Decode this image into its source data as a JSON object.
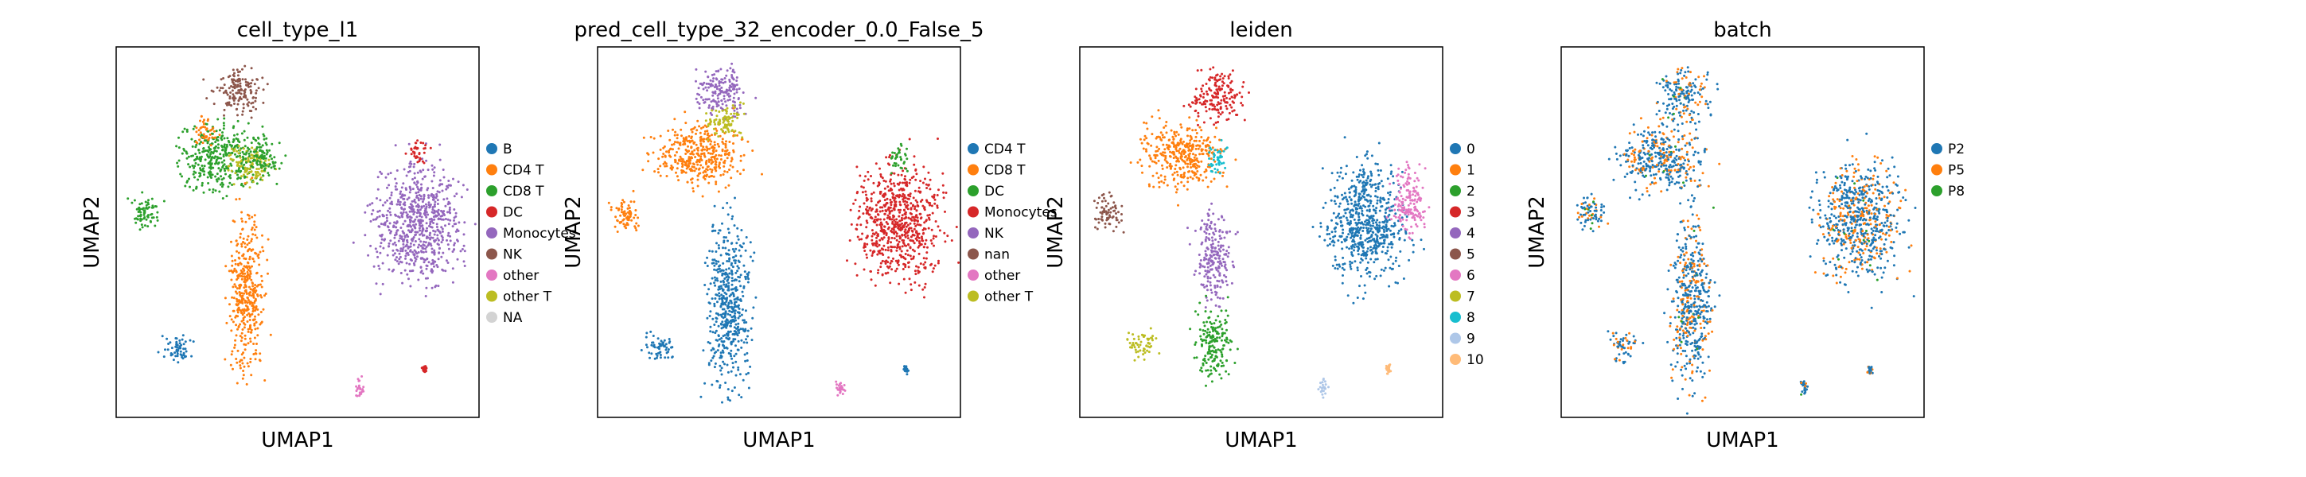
{
  "chart_data": [
    {
      "type": "scatter",
      "title": "cell_type_l1",
      "xlabel": "UMAP1",
      "ylabel": "UMAP2",
      "grid": false,
      "legend_position": "right",
      "series": [
        {
          "name": "B",
          "color": "#1f77b4"
        },
        {
          "name": "CD4 T",
          "color": "#ff7f0e"
        },
        {
          "name": "CD8 T",
          "color": "#2ca02c"
        },
        {
          "name": "DC",
          "color": "#d62728"
        },
        {
          "name": "Monocytes",
          "color": "#9467bd"
        },
        {
          "name": "NK",
          "color": "#8c564b"
        },
        {
          "name": "other",
          "color": "#e377c2"
        },
        {
          "name": "other T",
          "color": "#bcbd22"
        },
        {
          "name": "NA",
          "color": "#d3d3d3"
        }
      ],
      "clusters": [
        {
          "c": 5,
          "x": 0.34,
          "y": 0.88,
          "rx": 0.065,
          "ry": 0.065
        },
        {
          "c": 2,
          "x": 0.28,
          "y": 0.7,
          "rx": 0.11,
          "ry": 0.09
        },
        {
          "c": 7,
          "x": 0.37,
          "y": 0.68,
          "rx": 0.06,
          "ry": 0.05
        },
        {
          "c": 2,
          "x": 0.4,
          "y": 0.7,
          "rx": 0.05,
          "ry": 0.06
        },
        {
          "c": 1,
          "x": 0.25,
          "y": 0.78,
          "rx": 0.03,
          "ry": 0.04
        },
        {
          "c": 2,
          "x": 0.08,
          "y": 0.55,
          "rx": 0.04,
          "ry": 0.05
        },
        {
          "c": 1,
          "x": 0.36,
          "y": 0.33,
          "rx": 0.05,
          "ry": 0.22
        },
        {
          "c": 0,
          "x": 0.17,
          "y": 0.19,
          "rx": 0.04,
          "ry": 0.04
        },
        {
          "c": 4,
          "x": 0.83,
          "y": 0.53,
          "rx": 0.12,
          "ry": 0.16
        },
        {
          "c": 3,
          "x": 0.83,
          "y": 0.71,
          "rx": 0.025,
          "ry": 0.04
        },
        {
          "c": 6,
          "x": 0.67,
          "y": 0.08,
          "rx": 0.012,
          "ry": 0.025
        },
        {
          "c": 3,
          "x": 0.85,
          "y": 0.13,
          "rx": 0.008,
          "ry": 0.012
        }
      ]
    },
    {
      "type": "scatter",
      "title": "pred_cell_type_32_encoder_0.0_False_5",
      "xlabel": "UMAP1",
      "ylabel": "UMAP2",
      "grid": false,
      "legend_position": "right",
      "series": [
        {
          "name": "CD4 T",
          "color": "#1f77b4"
        },
        {
          "name": "CD8 T",
          "color": "#ff7f0e"
        },
        {
          "name": "DC",
          "color": "#2ca02c"
        },
        {
          "name": "Monocytes",
          "color": "#d62728"
        },
        {
          "name": "NK",
          "color": "#9467bd"
        },
        {
          "name": "nan",
          "color": "#8c564b"
        },
        {
          "name": "other",
          "color": "#e377c2"
        },
        {
          "name": "other T",
          "color": "#bcbd22"
        }
      ],
      "clusters": [
        {
          "c": 4,
          "x": 0.34,
          "y": 0.88,
          "rx": 0.07,
          "ry": 0.07
        },
        {
          "c": 1,
          "x": 0.28,
          "y": 0.71,
          "rx": 0.12,
          "ry": 0.09
        },
        {
          "c": 7,
          "x": 0.35,
          "y": 0.8,
          "rx": 0.05,
          "ry": 0.05
        },
        {
          "c": 1,
          "x": 0.08,
          "y": 0.55,
          "rx": 0.04,
          "ry": 0.05
        },
        {
          "c": 0,
          "x": 0.36,
          "y": 0.32,
          "rx": 0.06,
          "ry": 0.23
        },
        {
          "c": 0,
          "x": 0.17,
          "y": 0.19,
          "rx": 0.04,
          "ry": 0.04
        },
        {
          "c": 3,
          "x": 0.83,
          "y": 0.53,
          "rx": 0.12,
          "ry": 0.16
        },
        {
          "c": 2,
          "x": 0.83,
          "y": 0.7,
          "rx": 0.025,
          "ry": 0.04
        },
        {
          "c": 6,
          "x": 0.67,
          "y": 0.08,
          "rx": 0.012,
          "ry": 0.025
        },
        {
          "c": 0,
          "x": 0.85,
          "y": 0.13,
          "rx": 0.008,
          "ry": 0.012
        }
      ]
    },
    {
      "type": "scatter",
      "title": "leiden",
      "xlabel": "UMAP1",
      "ylabel": "UMAP2",
      "grid": false,
      "legend_position": "right",
      "series": [
        {
          "name": "0",
          "color": "#1f77b4"
        },
        {
          "name": "1",
          "color": "#ff7f0e"
        },
        {
          "name": "2",
          "color": "#2ca02c"
        },
        {
          "name": "3",
          "color": "#d62728"
        },
        {
          "name": "4",
          "color": "#9467bd"
        },
        {
          "name": "5",
          "color": "#8c564b"
        },
        {
          "name": "6",
          "color": "#e377c2"
        },
        {
          "name": "7",
          "color": "#bcbd22"
        },
        {
          "name": "8",
          "color": "#17becf"
        },
        {
          "name": "9",
          "color": "#aec7e8"
        },
        {
          "name": "10",
          "color": "#ffbb78"
        }
      ],
      "clusters": [
        {
          "c": 3,
          "x": 0.38,
          "y": 0.87,
          "rx": 0.07,
          "ry": 0.07
        },
        {
          "c": 1,
          "x": 0.28,
          "y": 0.71,
          "rx": 0.11,
          "ry": 0.09
        },
        {
          "c": 8,
          "x": 0.38,
          "y": 0.7,
          "rx": 0.03,
          "ry": 0.04
        },
        {
          "c": 5,
          "x": 0.08,
          "y": 0.55,
          "rx": 0.04,
          "ry": 0.05
        },
        {
          "c": 4,
          "x": 0.37,
          "y": 0.43,
          "rx": 0.05,
          "ry": 0.12
        },
        {
          "c": 2,
          "x": 0.37,
          "y": 0.2,
          "rx": 0.05,
          "ry": 0.1
        },
        {
          "c": 7,
          "x": 0.17,
          "y": 0.2,
          "rx": 0.04,
          "ry": 0.04
        },
        {
          "c": 0,
          "x": 0.79,
          "y": 0.53,
          "rx": 0.11,
          "ry": 0.16
        },
        {
          "c": 6,
          "x": 0.91,
          "y": 0.58,
          "rx": 0.05,
          "ry": 0.09
        },
        {
          "c": 9,
          "x": 0.67,
          "y": 0.08,
          "rx": 0.012,
          "ry": 0.025
        },
        {
          "c": 10,
          "x": 0.85,
          "y": 0.13,
          "rx": 0.008,
          "ry": 0.012
        }
      ]
    },
    {
      "type": "scatter",
      "title": "batch",
      "xlabel": "UMAP1",
      "ylabel": "UMAP2",
      "grid": false,
      "legend_position": "right",
      "series": [
        {
          "name": "P2",
          "color": "#1f77b4"
        },
        {
          "name": "P5",
          "color": "#ff7f0e"
        },
        {
          "name": "P8",
          "color": "#2ca02c"
        }
      ],
      "clusters": [
        {
          "c": 0,
          "x": 0.34,
          "y": 0.87,
          "rx": 0.07,
          "ry": 0.07
        },
        {
          "c": 0,
          "x": 0.28,
          "y": 0.7,
          "rx": 0.12,
          "ry": 0.09
        },
        {
          "c": 0,
          "x": 0.08,
          "y": 0.55,
          "rx": 0.04,
          "ry": 0.05
        },
        {
          "c": 0,
          "x": 0.36,
          "y": 0.32,
          "rx": 0.06,
          "ry": 0.23
        },
        {
          "c": 0,
          "x": 0.17,
          "y": 0.19,
          "rx": 0.04,
          "ry": 0.04
        },
        {
          "c": 0,
          "x": 0.83,
          "y": 0.53,
          "rx": 0.12,
          "ry": 0.16
        },
        {
          "c": 0,
          "x": 0.67,
          "y": 0.08,
          "rx": 0.012,
          "ry": 0.025
        },
        {
          "c": 0,
          "x": 0.85,
          "y": 0.13,
          "rx": 0.008,
          "ry": 0.012
        }
      ],
      "mix": {
        "1": 0.3,
        "2": 0.02
      }
    }
  ]
}
